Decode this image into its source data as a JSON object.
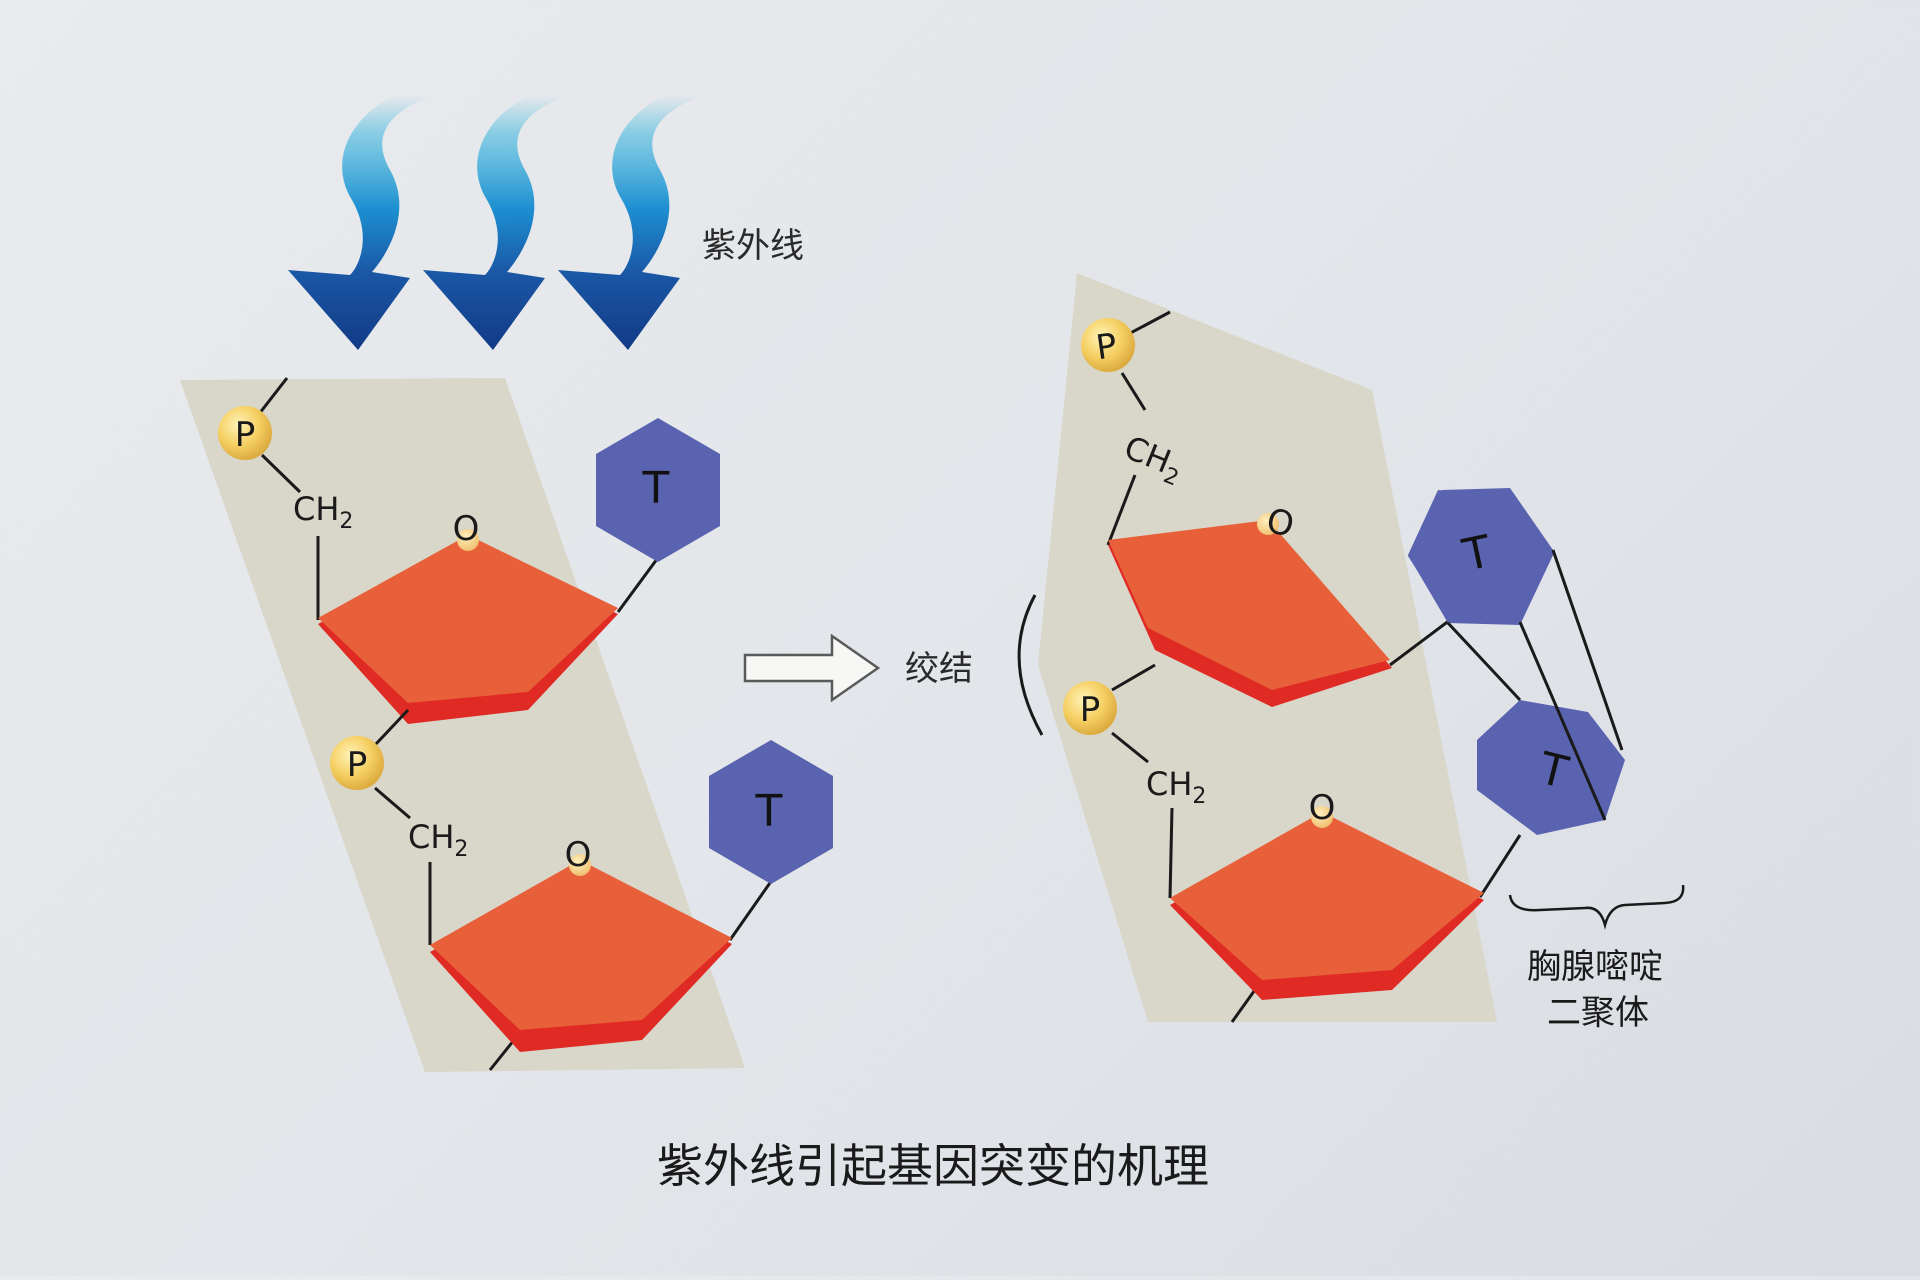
{
  "uv_label": "紫外线",
  "twist_label": "绞结",
  "dimer_label_line1": "胸腺嘧啶",
  "dimer_label_line2": "二聚体",
  "caption": "紫外线引起基因突变的机理",
  "phosphate_symbol": "P",
  "methylene_base": "CH",
  "methylene_sub": "2",
  "ring_oxygen": "O",
  "base_symbol": "T",
  "colors": {
    "ribbon": "#d8d5c8",
    "sugar": "#e8603a",
    "sugar_edge": "#e02a24",
    "base": "#5a63b0",
    "phosphate": "#f2c55a",
    "arrow_dark": "#123a85",
    "arrow_light": "#2ab0dc"
  },
  "icons": [
    "uv-ray-arrow-icon",
    "reaction-arrow-icon"
  ]
}
